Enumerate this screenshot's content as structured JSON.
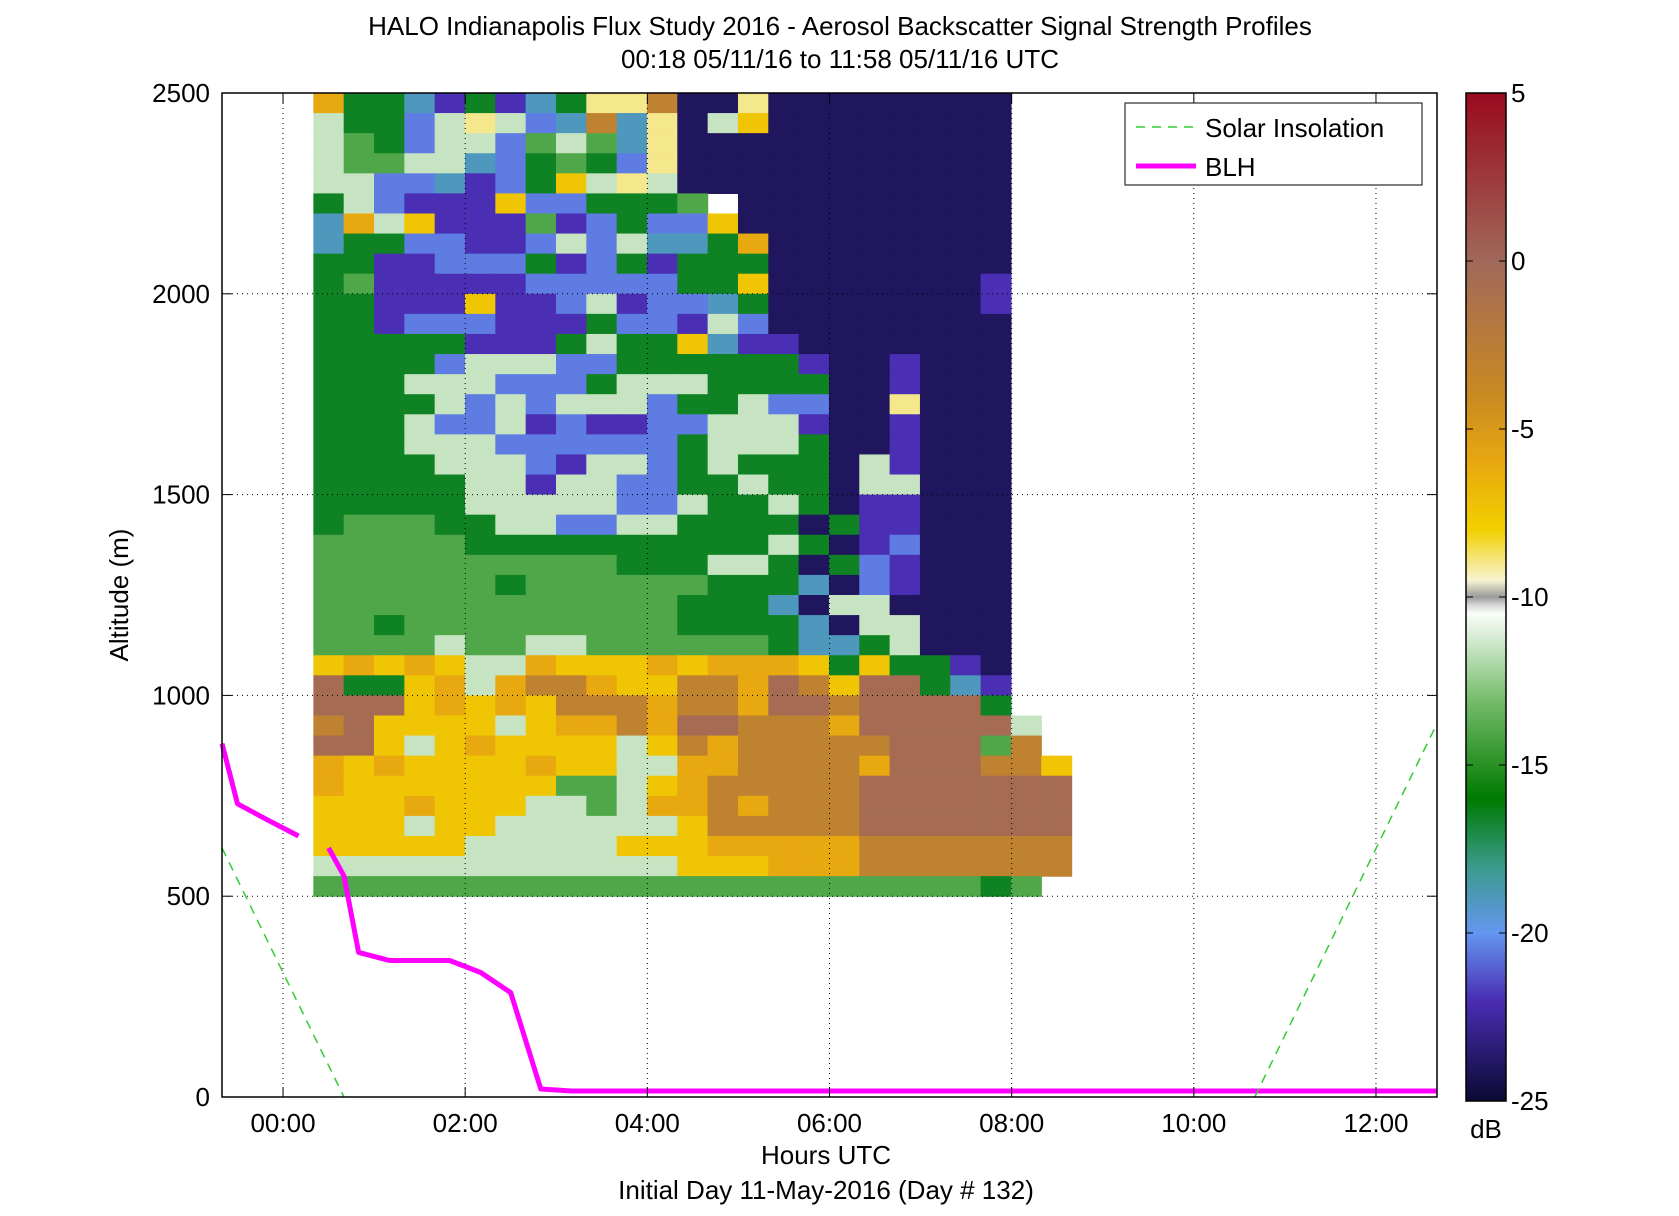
{
  "chart_data": {
    "type": "heatmap",
    "title": "HALO Indianapolis Flux Study 2016 - Aerosol Backscatter Signal Strength Profiles",
    "subtitle": "00:18 05/11/16 to 11:58 05/11/16  UTC",
    "xlabel": "Hours UTC",
    "xlabel2": "Initial Day 11-May-2016 (Day # 132)",
    "ylabel": "Altitude (m)",
    "xlim": [
      -0.67,
      12.67
    ],
    "ylim": [
      0,
      2500
    ],
    "x_ticks": [
      0,
      2,
      4,
      6,
      8,
      10,
      12
    ],
    "x_tick_labels": [
      "00:00",
      "02:00",
      "04:00",
      "06:00",
      "08:00",
      "10:00",
      "12:00"
    ],
    "y_ticks": [
      0,
      500,
      1000,
      1500,
      2000,
      2500
    ],
    "y_tick_labels": [
      "0",
      "500",
      "1000",
      "1500",
      "2000",
      "2500"
    ],
    "grid": true,
    "legend_position": "top-right",
    "legend": [
      "Solar Insolation",
      "BLH"
    ],
    "colorbar": {
      "unit": "dB",
      "range": [
        -25,
        5
      ],
      "ticks": [
        5,
        0,
        -5,
        -10,
        -15,
        -20,
        -25
      ],
      "tick_labels": [
        "5",
        "0",
        "-5",
        "-10",
        "-15",
        "-20",
        "-25"
      ],
      "stops": [
        [
          5,
          "#990a1e"
        ],
        [
          0,
          "#a0685a"
        ],
        [
          -4,
          "#c98a22"
        ],
        [
          -6,
          "#e8a80f"
        ],
        [
          -8,
          "#f2d000"
        ],
        [
          -9.5,
          "#f7f3d0"
        ],
        [
          -10,
          "#9a9a9a"
        ],
        [
          -10.4,
          "#ffffff"
        ],
        [
          -13,
          "#78be6e"
        ],
        [
          -16,
          "#007a00"
        ],
        [
          -18,
          "#3a9a8a"
        ],
        [
          -20,
          "#6496f0"
        ],
        [
          -22,
          "#4a2eb4"
        ],
        [
          -25,
          "#0a0a32"
        ]
      ]
    },
    "heatmap_rows_note": "rows from top (2500 m) to bottom, 50 m per row; columns 0.33 h each starting at 00:18",
    "heatmap_x_start": 0.333,
    "heatmap_dx": 0.333,
    "heatmap_dy": 50,
    "heatmap_rows": [
      "cgghjgjhgkkb..k........",
      "eggiekeihbhk.ed........",
      "efgieeifefhk...........",
      "effeehigfgik...........",
      "eeiihjigdeke...........",
      "geijjjdiigggfn.........",
      "hcedjjjfjigiid.........",
      "hggiijjieiehhgc........",
      "ggjjiiigjigjggg........",
      "gfjjjjjiiiiiggd.......j",
      "ggjjjdjjiejiihg.......j",
      "ggjiiijjjgiijei........",
      "gggggjjjgeggdhjj.......",
      "ggggieeeiiggggggj..j...",
      "gggeeeiiigeeegggg..j...",
      "ggggeieieeeiggeii..k...",
      "gggeiiejijjiieeej..j...",
      "gggeeeiiiiiigeeeg..j...",
      "ggggeeeijeeigeggg.ej...",
      "gggggeejeeiiggegg.ee...",
      "gggggeeeeeiieggeg.jj...",
      "gfffggeeiieegggg.gjj...",
      "fffffggggggggggeg.ji...",
      "ffffffffffgggeeg.gij...",
      "ffffffgffffffgggh.ij...",
      "ffffffffffffgggh.ee....",
      "ffgfffffffffggggh.ee...",
      "ffffeffeeffffffghhge...",
      "dcdcdeecdddcdcccdgdggj.",
      "aggdcecbbcddbbcabdaaghj",
      "aaadcdcdbbbcbbcaabaaaag",
      "baddddedccbcaabbbcaaaaae",
      "aadedcddddedbcbbbbbaaafb",
      "cdcddddcddeeccbbbbcaaabbd",
      "cdddddddffedcbbbbbaaaaaaa",
      "dddcdddeefeccbcbbbaaaaaaa",
      "dddeddeeeeeedbbbbbaaaaaaa",
      "dddddeeeeedddcccccbbbbbbb",
      "eeeeeeeeeeeedddcccbbbbbbb",
      "ffffffffffffffffffffffgf"
    ],
    "heatmap_palette": {
      "a": -0.5,
      "b": -3,
      "c": -6,
      "d": -7.5,
      "e": -11.5,
      "f": -14,
      "g": -16.5,
      "h": -19,
      "i": -20.5,
      "j": -22,
      "k": -9,
      ".": -24
    },
    "series": [
      {
        "name": "BLH",
        "color": "#ff00ff",
        "segments": [
          [
            [
              -0.67,
              880
            ],
            [
              -0.5,
              730
            ],
            [
              -0.17,
              690
            ],
            [
              0.17,
              650
            ]
          ],
          [
            [
              0.5,
              620
            ],
            [
              0.67,
              550
            ],
            [
              0.83,
              360
            ],
            [
              1.17,
              340
            ],
            [
              1.83,
              340
            ],
            [
              2.17,
              310
            ],
            [
              2.5,
              260
            ],
            [
              2.83,
              20
            ],
            [
              3.17,
              15
            ],
            [
              12.67,
              15
            ]
          ]
        ]
      },
      {
        "name": "Solar Insolation",
        "color": "#33cc33",
        "segments": [
          [
            [
              -0.67,
              620
            ],
            [
              0.67,
              0
            ]
          ],
          [
            [
              10.67,
              0
            ],
            [
              12.67,
              930
            ]
          ]
        ]
      }
    ]
  }
}
